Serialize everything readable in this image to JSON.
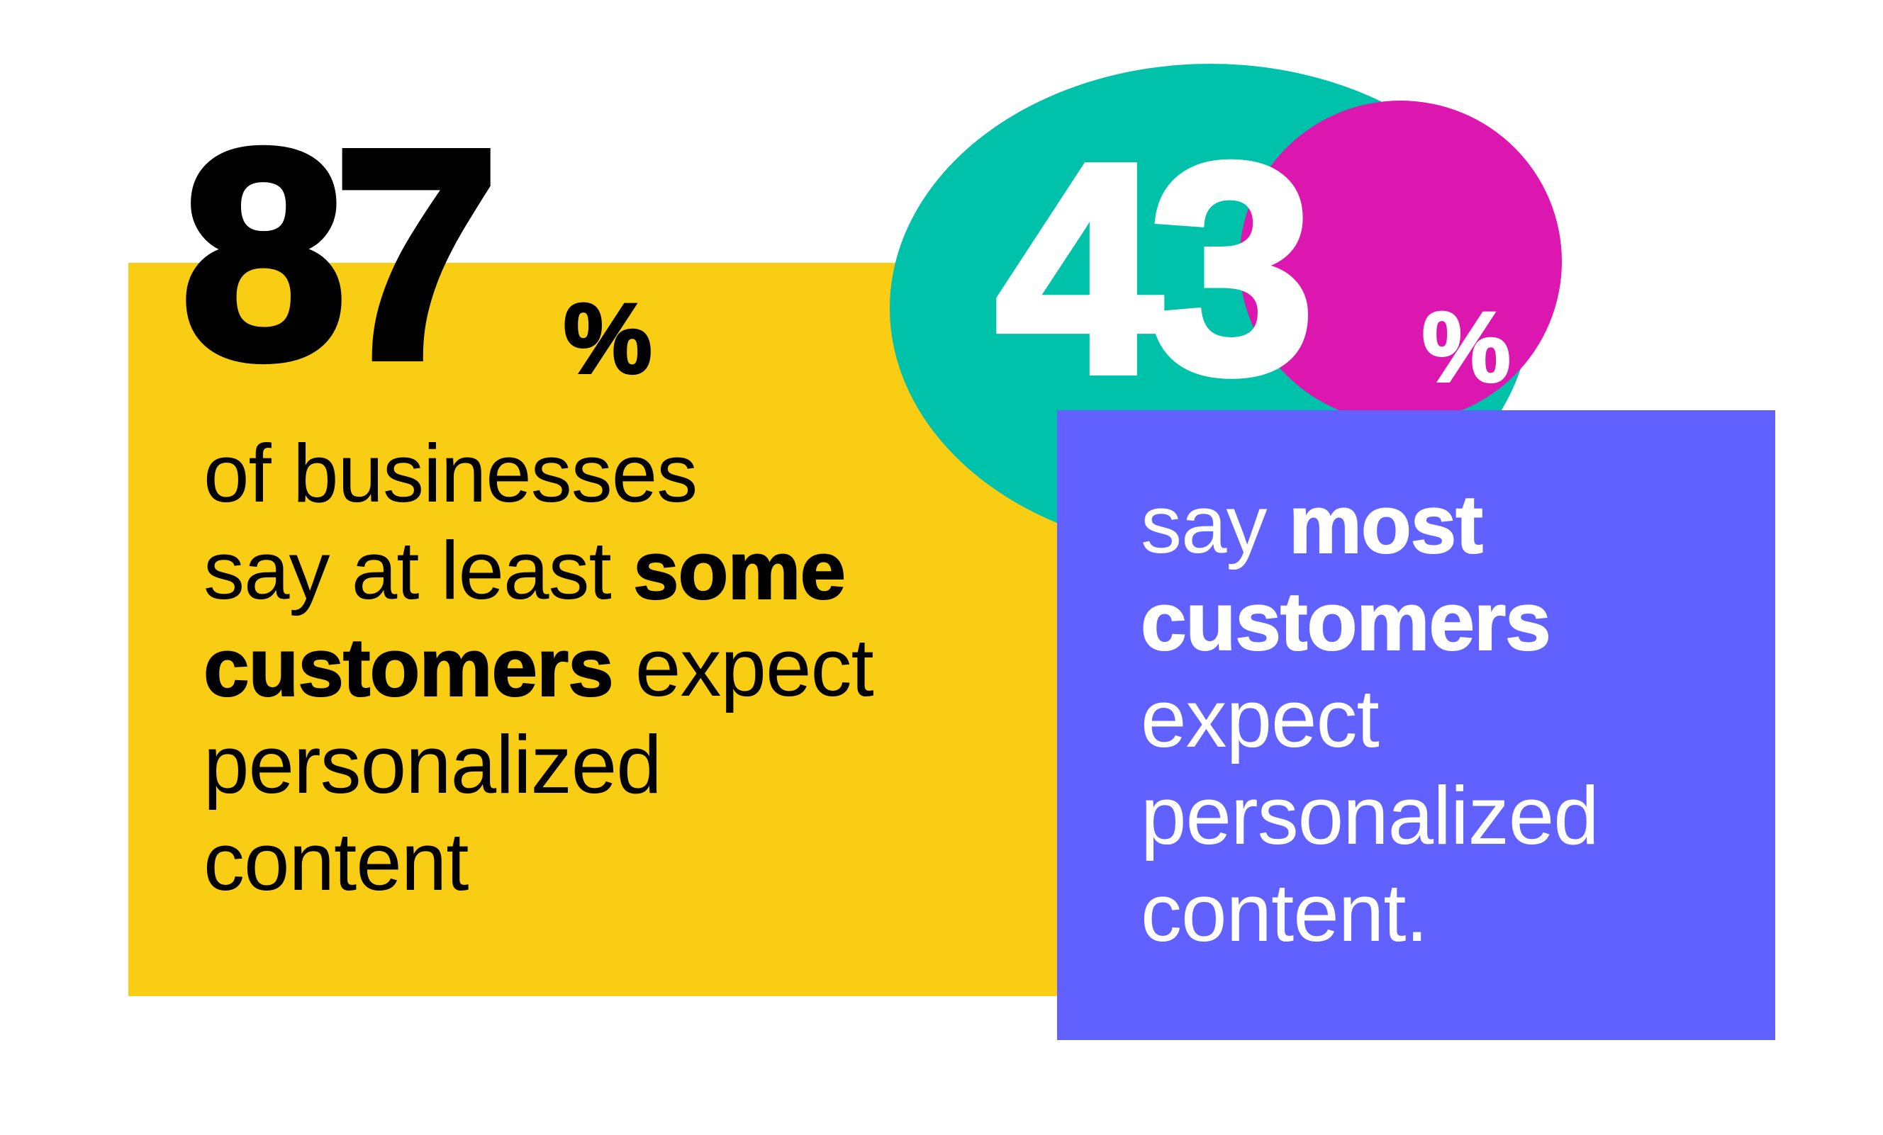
{
  "colors": {
    "background": "#ffffff",
    "yellow": "#F8CD14",
    "teal": "#00C1A9",
    "magenta": "#DC17B0",
    "purple": "#6161FF",
    "dark_text": "#000000",
    "light_text": "#ffffff"
  },
  "stat1": {
    "number": "87",
    "percent": "%",
    "lines": [
      {
        "normal": "of businesses"
      },
      {
        "normal": "say at least ",
        "bold": "some"
      },
      {
        "bold": "customers",
        "normal": " expect"
      },
      {
        "normal": "personalized"
      },
      {
        "normal": "content"
      }
    ]
  },
  "stat2": {
    "number": "43",
    "percent": "%",
    "lines": [
      {
        "normal": "say ",
        "bold": "most"
      },
      {
        "bold": "customers"
      },
      {
        "normal": "expect"
      },
      {
        "normal": "personalized"
      },
      {
        "normal": "content."
      }
    ]
  }
}
